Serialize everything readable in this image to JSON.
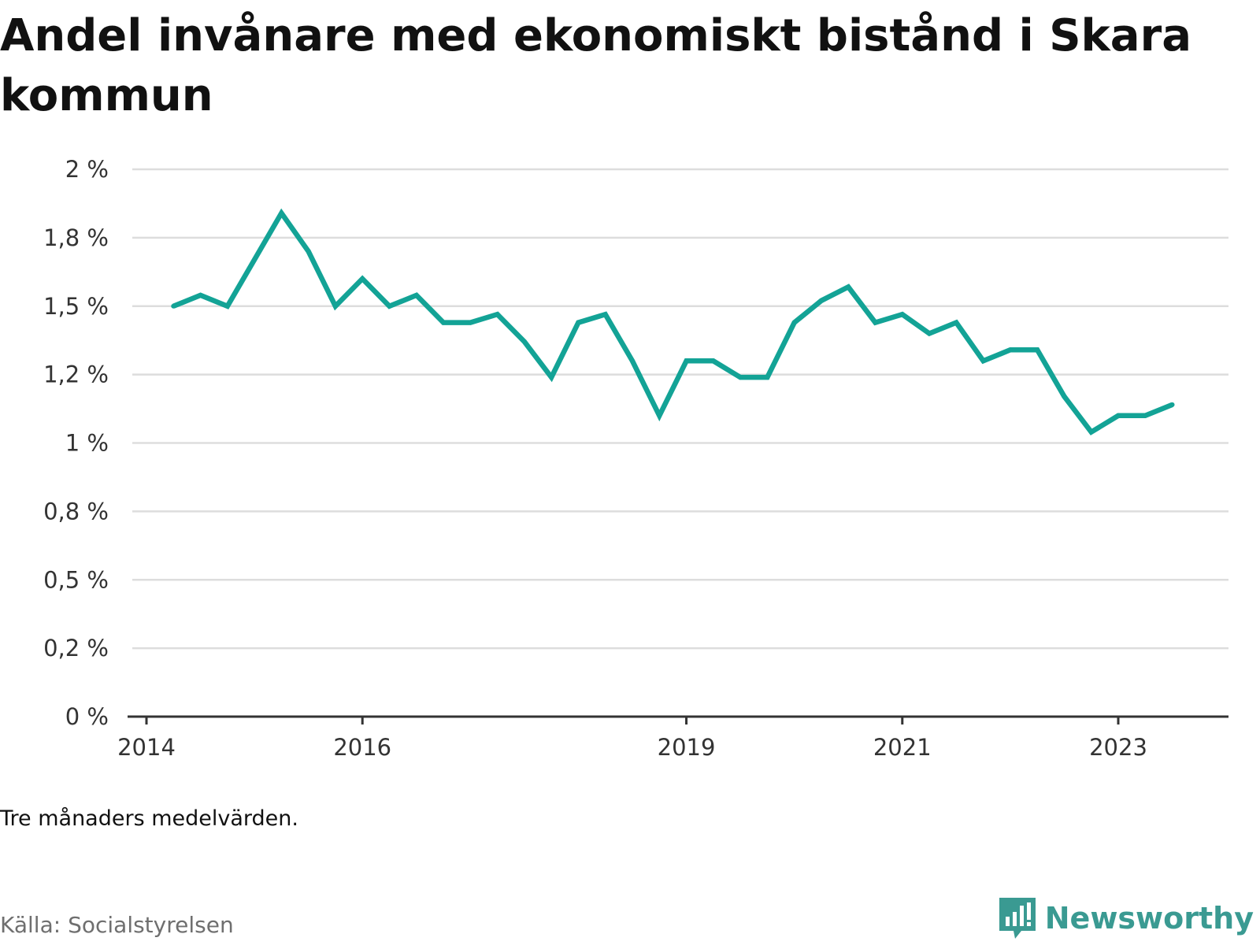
{
  "chart_data": {
    "type": "line",
    "title": "Andel invånare med ekonomiskt bistånd i Skara kommun",
    "xlabel": "",
    "ylabel": "",
    "ylim": [
      0,
      2
    ],
    "xlim": [
      "2014-01",
      "2024-03"
    ],
    "y_ticks": [
      {
        "value": 0,
        "label": "0 %"
      },
      {
        "value": 0.25,
        "label": "0,2 %"
      },
      {
        "value": 0.5,
        "label": "0,5 %"
      },
      {
        "value": 0.75,
        "label": "0,8 %"
      },
      {
        "value": 1.0,
        "label": "1 %"
      },
      {
        "value": 1.25,
        "label": "1,2 %"
      },
      {
        "value": 1.5,
        "label": "1,5 %"
      },
      {
        "value": 1.75,
        "label": "1,8 %"
      },
      {
        "value": 2.0,
        "label": "2 %"
      }
    ],
    "x_ticks": [
      {
        "value": "2014-01",
        "label": "2014"
      },
      {
        "value": "2016-01",
        "label": "2016"
      },
      {
        "value": "2019-01",
        "label": "2019"
      },
      {
        "value": "2021-01",
        "label": "2021"
      },
      {
        "value": "2023-01",
        "label": "2023"
      }
    ],
    "grid": true,
    "series": [
      {
        "color": "#13a396",
        "points": [
          {
            "x": "2014-04",
            "y": 1.5
          },
          {
            "x": "2014-07",
            "y": 1.54
          },
          {
            "x": "2014-10",
            "y": 1.5
          },
          {
            "x": "2015-01",
            "y": 1.67
          },
          {
            "x": "2015-04",
            "y": 1.84
          },
          {
            "x": "2015-07",
            "y": 1.7
          },
          {
            "x": "2015-10",
            "y": 1.5
          },
          {
            "x": "2016-01",
            "y": 1.6
          },
          {
            "x": "2016-04",
            "y": 1.5
          },
          {
            "x": "2016-07",
            "y": 1.54
          },
          {
            "x": "2016-10",
            "y": 1.44
          },
          {
            "x": "2017-01",
            "y": 1.44
          },
          {
            "x": "2017-04",
            "y": 1.47
          },
          {
            "x": "2017-07",
            "y": 1.37
          },
          {
            "x": "2017-10",
            "y": 1.24
          },
          {
            "x": "2018-01",
            "y": 1.44
          },
          {
            "x": "2018-04",
            "y": 1.47
          },
          {
            "x": "2018-07",
            "y": 1.3
          },
          {
            "x": "2018-10",
            "y": 1.1
          },
          {
            "x": "2019-01",
            "y": 1.3
          },
          {
            "x": "2019-04",
            "y": 1.3
          },
          {
            "x": "2019-07",
            "y": 1.24
          },
          {
            "x": "2019-10",
            "y": 1.24
          },
          {
            "x": "2020-01",
            "y": 1.44
          },
          {
            "x": "2020-04",
            "y": 1.52
          },
          {
            "x": "2020-07",
            "y": 1.57
          },
          {
            "x": "2020-10",
            "y": 1.44
          },
          {
            "x": "2021-01",
            "y": 1.47
          },
          {
            "x": "2021-04",
            "y": 1.4
          },
          {
            "x": "2021-07",
            "y": 1.44
          },
          {
            "x": "2021-10",
            "y": 1.3
          },
          {
            "x": "2022-01",
            "y": 1.34
          },
          {
            "x": "2022-04",
            "y": 1.34
          },
          {
            "x": "2022-07",
            "y": 1.17
          },
          {
            "x": "2022-10",
            "y": 1.04
          },
          {
            "x": "2023-01",
            "y": 1.1
          },
          {
            "x": "2023-04",
            "y": 1.1
          },
          {
            "x": "2023-07",
            "y": 1.14
          }
        ]
      }
    ]
  },
  "note": "Tre månaders medelvärden.",
  "source": "Källa: Socialstyrelsen",
  "brand": {
    "name": "Newsworthy",
    "color": "#3a9a92",
    "icon": "newsworthy-logo-icon"
  }
}
